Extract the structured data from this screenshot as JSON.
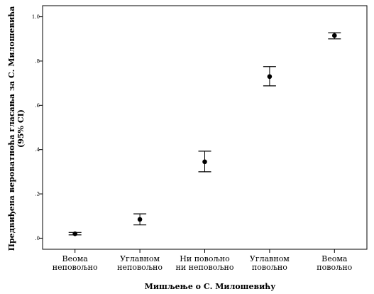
{
  "chart_data": {
    "type": "scatter",
    "subtype": "error-bar",
    "categories": [
      [
        "Веома",
        "неповољно"
      ],
      [
        "Углавном",
        "неповољно"
      ],
      [
        "Ни повољно",
        "ни неповољно"
      ],
      [
        "Углавном",
        "повољно"
      ],
      [
        "Веома",
        "повољно"
      ]
    ],
    "series": [
      {
        "values": [
          0.02,
          0.085,
          0.345,
          0.73,
          0.915
        ],
        "ci_lower": [
          0.015,
          0.06,
          0.3,
          0.688,
          0.9
        ],
        "ci_upper": [
          0.026,
          0.11,
          0.393,
          0.775,
          0.928
        ]
      }
    ],
    "xlabel": "Мишљење о С. Милошевићу",
    "ylabel_lines": [
      "Предвиђена вероватноћа гласања за С. Милошевића",
      "(95% CI)"
    ],
    "ylim": [
      -0.05,
      1.05
    ],
    "yticks": [
      0.0,
      0.2,
      0.4,
      0.6,
      0.8,
      1.0
    ],
    "ytick_labels": [
      ".0",
      ".2",
      ".4",
      ".6",
      ".8",
      "1.0"
    ],
    "grid": false,
    "legend": "none",
    "colors": {
      "marker": "#000000",
      "axis": "#000000",
      "background": "#ffffff"
    }
  }
}
